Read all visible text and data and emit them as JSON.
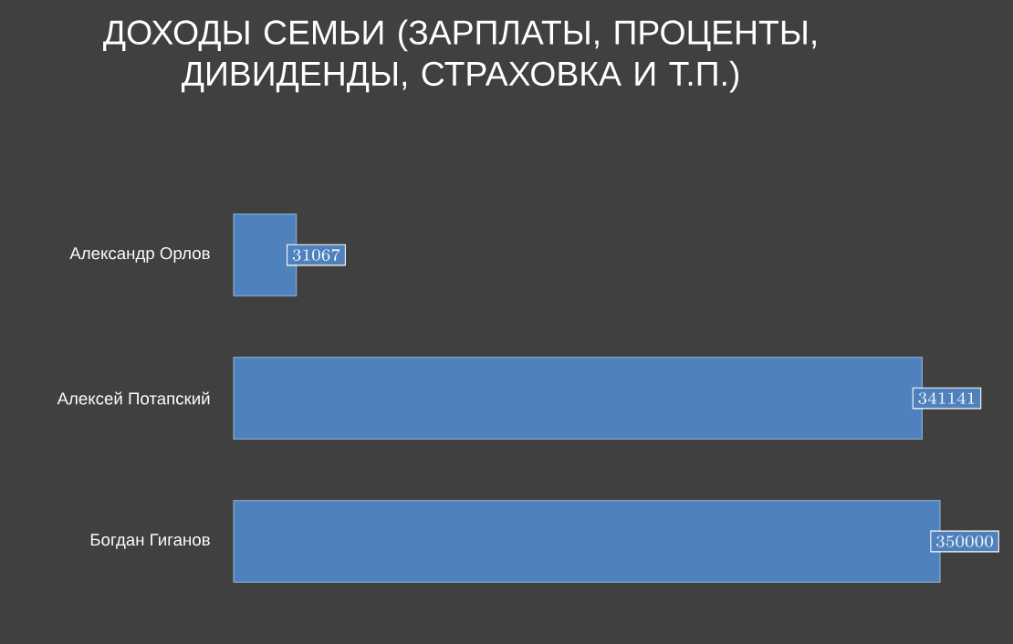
{
  "chart_data": {
    "type": "bar",
    "orientation": "horizontal",
    "title": "ДОХОДЫ СЕМЬИ (ЗАРПЛАТЫ, ПРОЦЕНТЫ, ДИВИДЕНДЫ, СТРАХОВКА И Т.П.)",
    "categories": [
      "Александр Орлов",
      "Алексей Потапский",
      "Богдан Гиганов"
    ],
    "values": [
      31067,
      341141,
      350000
    ],
    "color": "#4f81bd",
    "data_labels": true
  }
}
